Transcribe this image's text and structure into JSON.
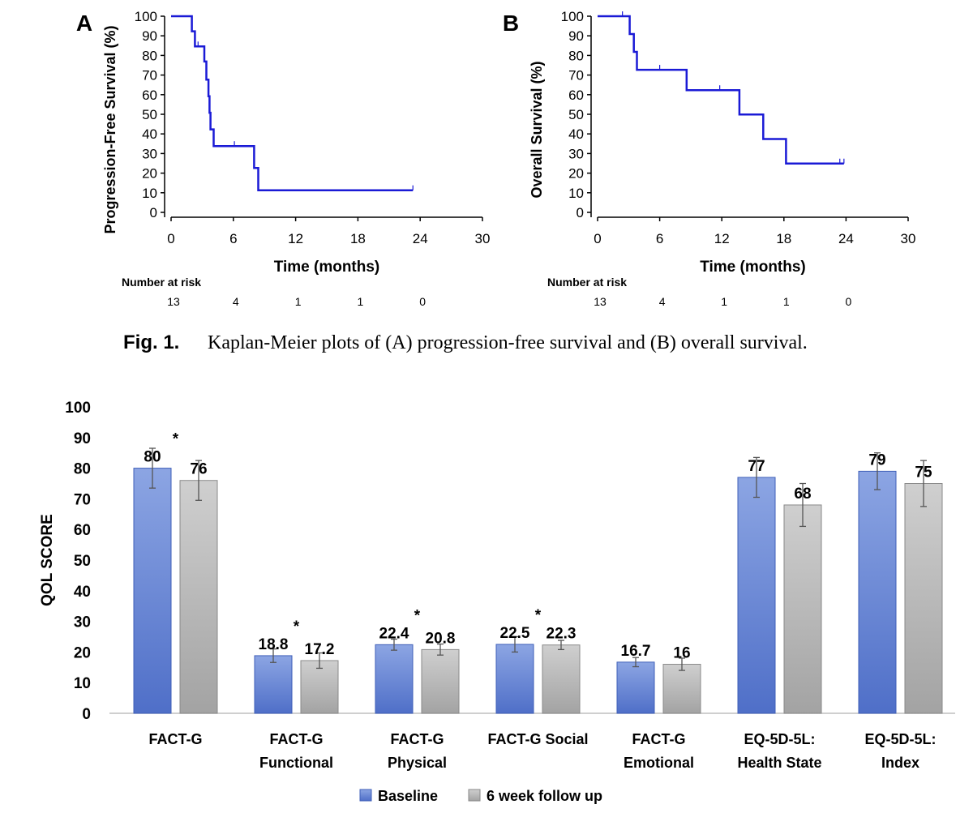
{
  "figure1": {
    "caption_label": "Fig. 1.",
    "caption_text": "Kaplan-Meier plots of (A) progression-free survival and (B) overall survival.",
    "at_risk_label": "Number at risk",
    "xlabel": "Time (months)"
  },
  "colors": {
    "km_line": "#1a1ad6",
    "baseline": "#5b79cc",
    "followup": "#a6a6a6",
    "axis": "#000000"
  },
  "chart_data": [
    {
      "type": "line",
      "panel": "A",
      "title": "",
      "xlabel": "Time (months)",
      "ylabel": "Progression-Free Survival (%)",
      "xlim": [
        0,
        30
      ],
      "ylim": [
        0,
        100
      ],
      "xticks": [
        0,
        6,
        12,
        18,
        24,
        30
      ],
      "yticks": [
        0,
        10,
        20,
        30,
        40,
        50,
        60,
        70,
        80,
        90,
        100
      ],
      "steps": [
        [
          0,
          100
        ],
        [
          2.0,
          100
        ],
        [
          2.0,
          92.3
        ],
        [
          2.3,
          92.3
        ],
        [
          2.3,
          84.6
        ],
        [
          3.2,
          84.6
        ],
        [
          3.2,
          76.9
        ],
        [
          3.4,
          76.9
        ],
        [
          3.4,
          67.7
        ],
        [
          3.6,
          67.7
        ],
        [
          3.6,
          59.2
        ],
        [
          3.7,
          59.2
        ],
        [
          3.7,
          50.8
        ],
        [
          3.8,
          50.8
        ],
        [
          3.8,
          42.3
        ],
        [
          4.1,
          42.3
        ],
        [
          4.1,
          33.8
        ],
        [
          8.0,
          33.8
        ],
        [
          8.0,
          22.6
        ],
        [
          8.4,
          22.6
        ],
        [
          8.4,
          11.3
        ],
        [
          23.3,
          11.3
        ]
      ],
      "censored": [
        [
          2.6,
          84.6
        ],
        [
          6.1,
          33.8
        ],
        [
          23.3,
          11.3
        ]
      ],
      "at_risk": {
        "label": "Number at risk",
        "times": [
          0,
          6,
          12,
          18,
          24
        ],
        "values": [
          "13",
          "4",
          "1",
          "1",
          "0"
        ]
      }
    },
    {
      "type": "line",
      "panel": "B",
      "title": "",
      "xlabel": "Time (months)",
      "ylabel": "Overall Survival (%)",
      "xlim": [
        0,
        30
      ],
      "ylim": [
        0,
        100
      ],
      "xticks": [
        0,
        6,
        12,
        18,
        24,
        30
      ],
      "yticks": [
        0,
        10,
        20,
        30,
        40,
        50,
        60,
        70,
        80,
        90,
        100
      ],
      "steps": [
        [
          0,
          100
        ],
        [
          3.1,
          100
        ],
        [
          3.1,
          90.9
        ],
        [
          3.5,
          90.9
        ],
        [
          3.5,
          81.8
        ],
        [
          3.8,
          81.8
        ],
        [
          3.8,
          72.7
        ],
        [
          8.6,
          72.7
        ],
        [
          8.6,
          62.3
        ],
        [
          13.7,
          62.3
        ],
        [
          13.7,
          49.9
        ],
        [
          16.0,
          49.9
        ],
        [
          16.0,
          37.4
        ],
        [
          18.2,
          37.4
        ],
        [
          18.2,
          24.9
        ],
        [
          23.8,
          24.9
        ]
      ],
      "censored": [
        [
          2.4,
          100
        ],
        [
          6.0,
          72.7
        ],
        [
          11.8,
          62.3
        ],
        [
          23.4,
          24.9
        ],
        [
          23.8,
          24.9
        ]
      ],
      "at_risk": {
        "label": "Number at risk",
        "times": [
          0,
          6,
          12,
          18,
          24
        ],
        "values": [
          "13",
          "4",
          "1",
          "1",
          "0"
        ]
      }
    },
    {
      "type": "bar",
      "title": "",
      "xlabel": "",
      "ylabel": "QOL SCORE",
      "ylim": [
        0,
        100
      ],
      "yticks": [
        0,
        10,
        20,
        30,
        40,
        50,
        60,
        70,
        80,
        90,
        100
      ],
      "categories": [
        [
          "FACT-G"
        ],
        [
          "FACT-G",
          "Functional"
        ],
        [
          "FACT-G",
          "Physical"
        ],
        [
          "FACT-G Social"
        ],
        [
          "FACT-G",
          "Emotional"
        ],
        [
          "EQ-5D-5L:",
          "Health State"
        ],
        [
          "EQ-5D-5L:",
          "Index"
        ]
      ],
      "series": [
        {
          "name": "Baseline",
          "values": [
            80,
            18.8,
            22.4,
            22.5,
            16.7,
            77,
            79
          ],
          "labels": [
            "80",
            "18.8",
            "22.4",
            "22.5",
            "16.7",
            "77",
            "79"
          ],
          "err": [
            6.5,
            2.2,
            1.8,
            2.5,
            1.5,
            6.5,
            6
          ]
        },
        {
          "name": "6 week follow up",
          "values": [
            76,
            17.2,
            20.8,
            22.3,
            16,
            68,
            75
          ],
          "labels": [
            "76",
            "17.2",
            "20.8",
            "22.3",
            "16",
            "68",
            "75"
          ],
          "err": [
            6.5,
            2.5,
            1.8,
            1.5,
            2,
            7,
            7.5
          ]
        }
      ],
      "significance": [
        "*",
        "*",
        "*",
        "*",
        "",
        "",
        ""
      ],
      "legend": {
        "position": "bottom",
        "entries": [
          "Baseline",
          "6 week follow up"
        ]
      }
    }
  ]
}
